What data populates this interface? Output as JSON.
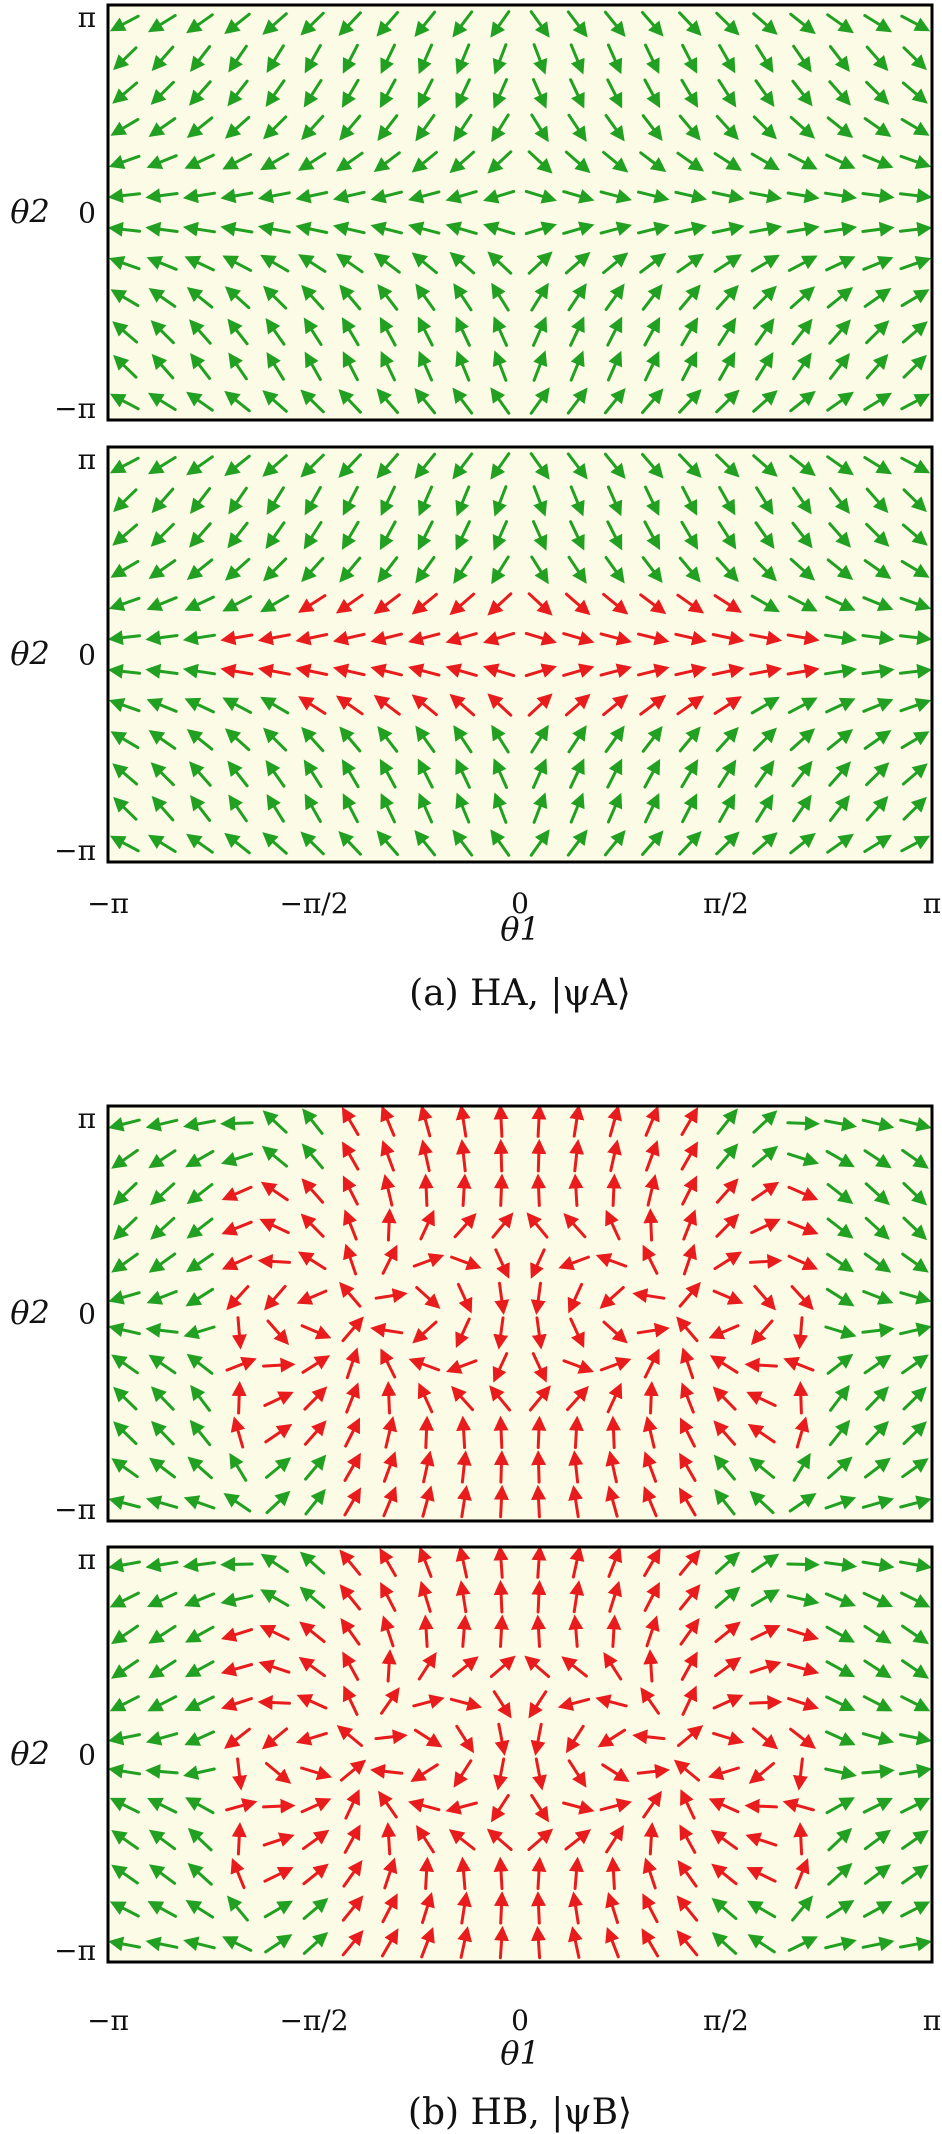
{
  "figure": {
    "panels": [
      {
        "id": "a-top",
        "model": "HA",
        "flow": "radial",
        "sinks": [
          -3.1416,
          3.1416
        ],
        "red_region": false
      },
      {
        "id": "a-bottom",
        "model": "HA",
        "flow": "radial",
        "sinks": [
          -3.1416,
          3.1416
        ],
        "red_region": true
      },
      {
        "id": "b-top",
        "model": "HB",
        "flow": "dipole",
        "sinks": [
          -3.1416,
          3.1416
        ],
        "cores": [
          -1.2,
          1.2
        ],
        "red_region": true
      },
      {
        "id": "b-bottom",
        "model": "HB",
        "flow": "dipole",
        "sinks": [
          -3.1416,
          3.1416
        ],
        "cores": [
          -1.2,
          1.2
        ],
        "red_region": true
      }
    ],
    "x_ticks": [
      "−π",
      "−π/2",
      "0",
      "π/2",
      "π"
    ],
    "y_ticks": [
      "π",
      "0",
      "−π"
    ],
    "xlabel": "θ1",
    "ylabel": "θ2",
    "caption_a": "(a) HA, |ψA⟩",
    "caption_b": "(b) HB, |ψB⟩",
    "colors": {
      "red": "#e02020",
      "yellow": "#f4f070",
      "cream": "#fbfbe6",
      "blue": "#2f55e6",
      "arrow_green": "#22a022",
      "arrow_red": "#e81c1c"
    }
  }
}
